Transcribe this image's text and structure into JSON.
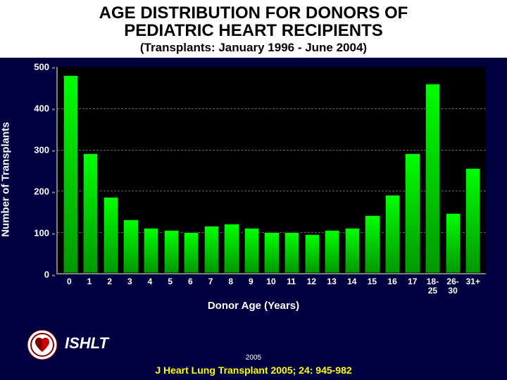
{
  "title_line1": "AGE DISTRIBUTION FOR DONORS OF",
  "title_line2": "PEDIATRIC HEART RECIPIENTS",
  "subtitle": "(Transplants: January 1996 - June 2004)",
  "ylabel": "Number of Transplants",
  "xlabel": "Donor Age (Years)",
  "org": "ISHLT",
  "year": "2005",
  "citation": "J Heart Lung Transplant 2005; 24: 945-982",
  "chart": {
    "type": "bar",
    "background_color": "#000000",
    "page_background": "#000040",
    "bar_color_top": "#00ff00",
    "bar_color_bottom": "#009900",
    "grid_color": "#606060",
    "axis_color": "#808080",
    "text_color": "#ffffff",
    "citation_color": "#ffff00",
    "title_fontsize": 24,
    "subtitle_fontsize": 17,
    "axis_label_fontsize": 15,
    "tick_fontsize": 13,
    "ylim": [
      0,
      500
    ],
    "yticks": [
      0,
      100,
      200,
      300,
      400,
      500
    ],
    "bar_width": 0.8,
    "categories": [
      "0",
      "1",
      "2",
      "3",
      "4",
      "5",
      "6",
      "7",
      "8",
      "9",
      "10",
      "11",
      "12",
      "13",
      "14",
      "15",
      "16",
      "17",
      "18-\n25",
      "26-\n30",
      "31+"
    ],
    "values": [
      480,
      290,
      185,
      130,
      110,
      105,
      100,
      115,
      120,
      110,
      100,
      100,
      95,
      105,
      110,
      140,
      190,
      290,
      460,
      145,
      255
    ]
  }
}
